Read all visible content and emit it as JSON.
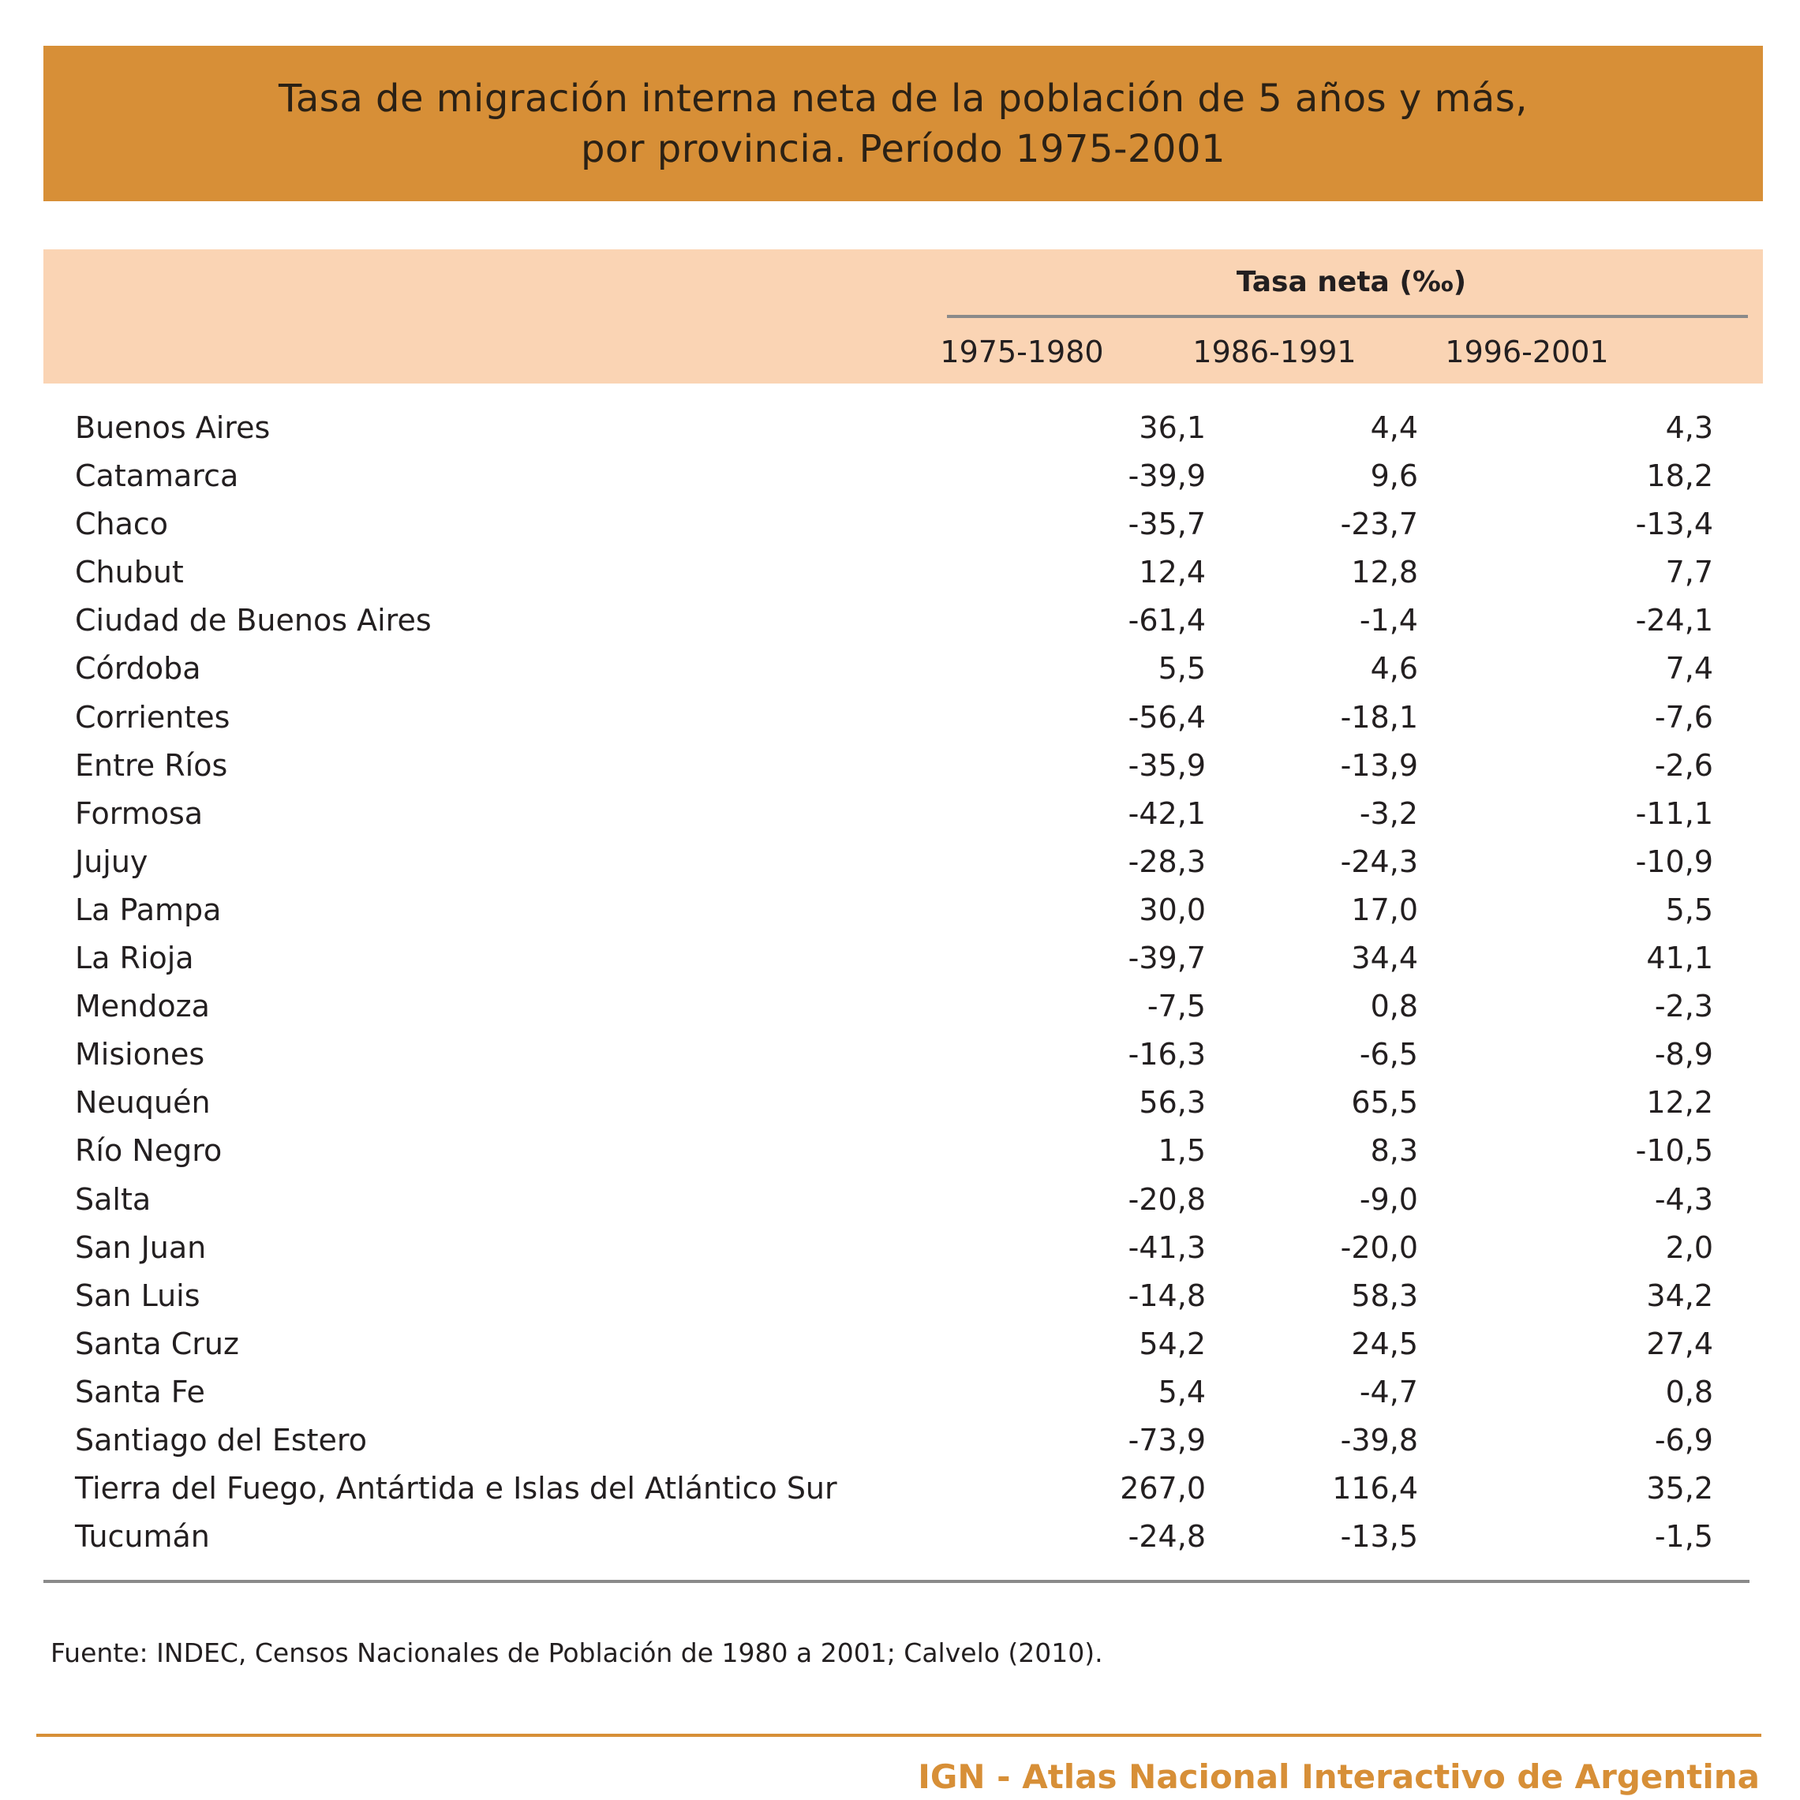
{
  "title": {
    "line1": "Tasa de migración interna neta de la población de 5 años y más,",
    "line2": "por provincia. Período 1975-2001"
  },
  "table": {
    "group_header": "Tasa neta (‰)",
    "columns": [
      "1975-1980",
      "1986-1991",
      "1996-2001"
    ],
    "rows": [
      {
        "province": "Buenos Aires",
        "values": [
          "36,1",
          "4,4",
          "4,3"
        ]
      },
      {
        "province": "Catamarca",
        "values": [
          "-39,9",
          "9,6",
          "18,2"
        ]
      },
      {
        "province": "Chaco",
        "values": [
          "-35,7",
          "-23,7",
          "-13,4"
        ]
      },
      {
        "province": "Chubut",
        "values": [
          "12,4",
          "12,8",
          "7,7"
        ]
      },
      {
        "province": "Ciudad de Buenos Aires",
        "values": [
          "-61,4",
          "-1,4",
          "-24,1"
        ]
      },
      {
        "province": "Córdoba",
        "values": [
          "5,5",
          "4,6",
          "7,4"
        ]
      },
      {
        "province": "Corrientes",
        "values": [
          "-56,4",
          "-18,1",
          "-7,6"
        ]
      },
      {
        "province": "Entre Ríos",
        "values": [
          "-35,9",
          "-13,9",
          "-2,6"
        ]
      },
      {
        "province": "Formosa",
        "values": [
          "-42,1",
          "-3,2",
          "-11,1"
        ]
      },
      {
        "province": "Jujuy",
        "values": [
          "-28,3",
          "-24,3",
          "-10,9"
        ]
      },
      {
        "province": "La Pampa",
        "values": [
          "30,0",
          "17,0",
          "5,5"
        ]
      },
      {
        "province": "La Rioja",
        "values": [
          "-39,7",
          "34,4",
          "41,1"
        ]
      },
      {
        "province": "Mendoza",
        "values": [
          "-7,5",
          "0,8",
          "-2,3"
        ]
      },
      {
        "province": "Misiones",
        "values": [
          "-16,3",
          "-6,5",
          "-8,9"
        ]
      },
      {
        "province": "Neuquén",
        "values": [
          "56,3",
          "65,5",
          "12,2"
        ]
      },
      {
        "province": "Río Negro",
        "values": [
          "1,5",
          "8,3",
          "-10,5"
        ]
      },
      {
        "province": "Salta",
        "values": [
          "-20,8",
          "-9,0",
          "-4,3"
        ]
      },
      {
        "province": "San Juan",
        "values": [
          "-41,3",
          "-20,0",
          "2,0"
        ]
      },
      {
        "province": "San Luis",
        "values": [
          "-14,8",
          "58,3",
          "34,2"
        ]
      },
      {
        "province": "Santa Cruz",
        "values": [
          "54,2",
          "24,5",
          "27,4"
        ]
      },
      {
        "province": "Santa Fe",
        "values": [
          "5,4",
          "-4,7",
          "0,8"
        ]
      },
      {
        "province": "Santiago del Estero",
        "values": [
          "-73,9",
          "-39,8",
          "-6,9"
        ]
      },
      {
        "province": "Tierra del Fuego, Antártida e Islas del Atlántico Sur",
        "values": [
          "267,0",
          "116,4",
          "35,2"
        ]
      },
      {
        "province": "Tucumán",
        "values": [
          "-24,8",
          "-13,5",
          "-1,5"
        ]
      }
    ]
  },
  "source": "Fuente: INDEC, Censos Nacionales de Población de 1980 a 2001; Calvelo (2010).",
  "footer": "IGN - Atlas Nacional Interactivo de Argentina",
  "colors": {
    "title_banner": "#d78f37",
    "header_band": "#fad4b4",
    "rule_gray": "#8a8a8a",
    "footer_accent": "#d78f37"
  }
}
